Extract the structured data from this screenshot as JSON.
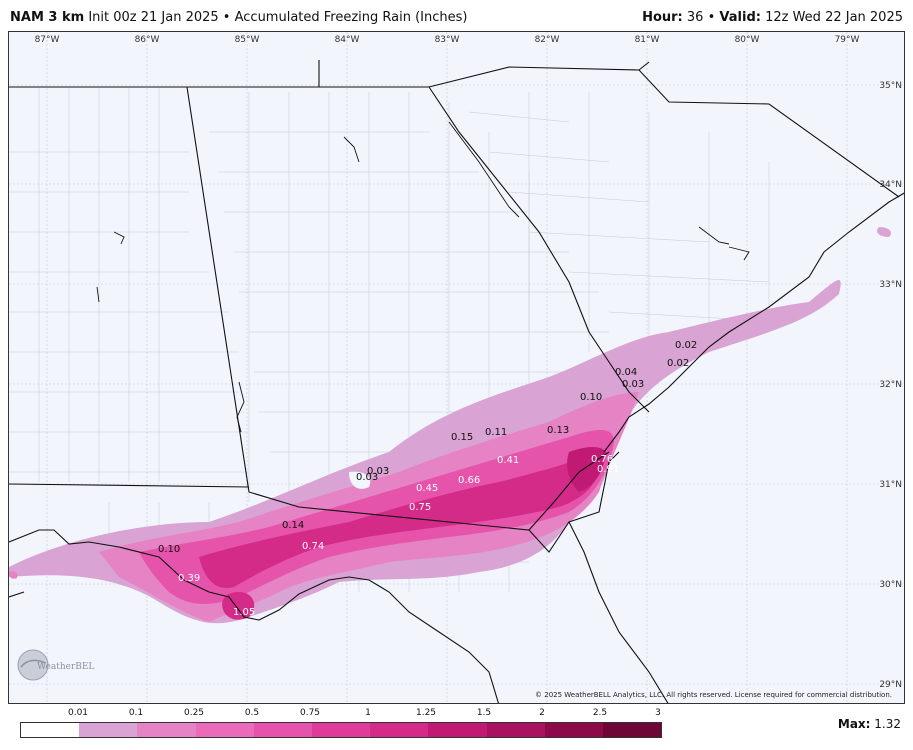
{
  "header": {
    "model": "NAM 3 km",
    "init": "Init 00z 21 Jan 2025",
    "bullet": "•",
    "product": "Accumulated Freezing Rain (Inches)",
    "hour_label": "Hour:",
    "hour_value": "36",
    "valid_label": "Valid:",
    "valid_value": "12z Wed 22 Jan 2025"
  },
  "longitudes": [
    "87°W",
    "86°W",
    "85°W",
    "84°W",
    "83°W",
    "82°W",
    "81°W",
    "80°W",
    "79°W"
  ],
  "latitudes": [
    "35°N",
    "34°N",
    "33°N",
    "32°N",
    "31°N",
    "30°N",
    "29°N"
  ],
  "value_labels": [
    {
      "text": "0.02",
      "white": false
    },
    {
      "text": "0.02",
      "white": false
    },
    {
      "text": "0.04",
      "white": false
    },
    {
      "text": "0.03",
      "white": false
    },
    {
      "text": "0.10",
      "white": false
    },
    {
      "text": "0.13",
      "white": false
    },
    {
      "text": "0.15",
      "white": false
    },
    {
      "text": "0.11",
      "white": false
    },
    {
      "text": "0.41",
      "white": true
    },
    {
      "text": "0.76",
      "white": true
    },
    {
      "text": "0.91",
      "white": true
    },
    {
      "text": "0.03",
      "white": false
    },
    {
      "text": "0.03",
      "white": false
    },
    {
      "text": "0.45",
      "white": true
    },
    {
      "text": "0.66",
      "white": true
    },
    {
      "text": "0.75",
      "white": true
    },
    {
      "text": "0.14",
      "white": false
    },
    {
      "text": "0.74",
      "white": true
    },
    {
      "text": "0.10",
      "white": false
    },
    {
      "text": "0.39",
      "white": true
    },
    {
      "text": "1.05",
      "white": true
    }
  ],
  "copyright": "© 2025 WeatherBELL Analytics, LLC. All rights reserved. License required for commercial distribution.",
  "logo_text": "WeatherBELL",
  "legend": {
    "labels": [
      "0.01",
      "0.1",
      "0.25",
      "0.5",
      "0.75",
      "1",
      "1.25",
      "1.5",
      "2",
      "2.5",
      "3"
    ],
    "colors": [
      "#ffffff",
      "#d9a3d3",
      "#e583c4",
      "#e96bb9",
      "#e653aa",
      "#df3c9a",
      "#d42a88",
      "#c11a75",
      "#a8125f",
      "#8c0a4a",
      "#6d0535"
    ],
    "max_label": "Max:",
    "max_value": "1.32"
  }
}
